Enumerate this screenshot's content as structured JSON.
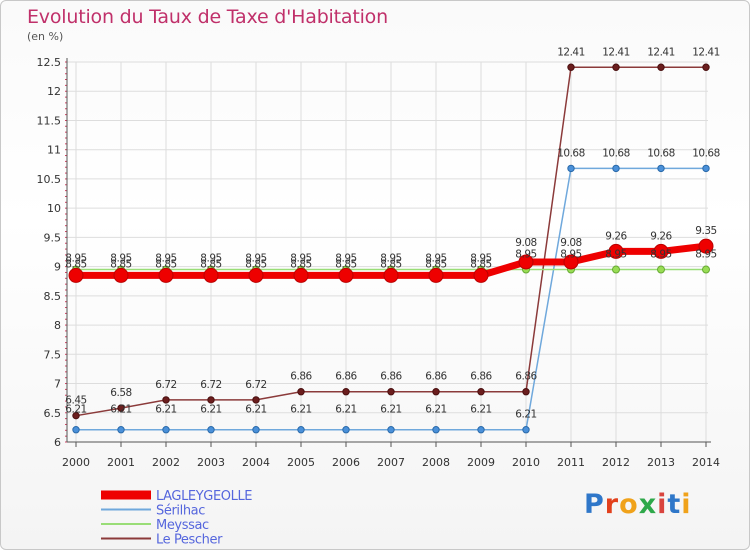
{
  "title": "Evolution du Taux de Taxe d'Habitation",
  "subtitle": "(en %)",
  "brand": "Proxiti",
  "brand_colors": [
    "#2f77c9",
    "#e2401c",
    "#f0a21a",
    "#2ea84a",
    "#d9443e",
    "#2f77c9",
    "#f0a21a"
  ],
  "chart_data": {
    "type": "line",
    "x": [
      "2000",
      "2001",
      "2002",
      "2003",
      "2004",
      "2005",
      "2006",
      "2007",
      "2008",
      "2009",
      "2010",
      "2011",
      "2012",
      "2013",
      "2014"
    ],
    "ylim": [
      6,
      12.5
    ],
    "yticks": [
      "6",
      "6.5",
      "7",
      "7.5",
      "8",
      "8.5",
      "9",
      "9.5",
      "10",
      "10.5",
      "11",
      "11.5",
      "12",
      "12.5"
    ],
    "grid": true,
    "legend_position": "bottom-left",
    "series": [
      {
        "name": "LAGLEYGEOLLE",
        "color": "#ee0000",
        "width": 7,
        "values": [
          8.85,
          8.85,
          8.85,
          8.85,
          8.85,
          8.85,
          8.85,
          8.85,
          8.85,
          8.85,
          9.08,
          9.08,
          9.26,
          9.26,
          9.35
        ],
        "labels": [
          "8.85",
          "8.85",
          "8.85",
          "8.85",
          "8.85",
          "8.85",
          "8.85",
          "8.85",
          "8.85",
          "8.85",
          "9.08",
          "9.08",
          "9.26",
          "9.26",
          "9.35"
        ]
      },
      {
        "name": "Sérilhac",
        "color": "#6fa8dc",
        "width": 1.5,
        "values": [
          6.21,
          6.21,
          6.21,
          6.21,
          6.21,
          6.21,
          6.21,
          6.21,
          6.21,
          6.21,
          6.21,
          10.68,
          10.68,
          10.68,
          10.68
        ],
        "labels": [
          "6.21",
          "6.21",
          "6.21",
          "6.21",
          "6.21",
          "6.21",
          "6.21",
          "6.21",
          "6.21",
          "6.21",
          "6.21",
          "10.68",
          "10.68",
          "10.68",
          "10.68"
        ]
      },
      {
        "name": "Meyssac",
        "color": "#99dd77",
        "width": 1.5,
        "values": [
          8.95,
          8.95,
          8.95,
          8.95,
          8.95,
          8.95,
          8.95,
          8.95,
          8.95,
          8.95,
          8.95,
          8.95,
          8.95,
          8.95,
          8.95
        ],
        "labels": [
          "8.95",
          "8.95",
          "8.95",
          "8.95",
          "8.95",
          "8.95",
          "8.95",
          "8.95",
          "8.95",
          "8.95",
          "8.95",
          "8.95",
          "8.95",
          "8.95",
          "8.95"
        ]
      },
      {
        "name": "Le Pescher",
        "color": "#8b3a3a",
        "width": 1.5,
        "values": [
          6.45,
          6.58,
          6.72,
          6.72,
          6.72,
          6.86,
          6.86,
          6.86,
          6.86,
          6.86,
          6.86,
          12.41,
          12.41,
          12.41,
          12.41
        ],
        "labels": [
          "6.45",
          "6.58",
          "6.72",
          "6.72",
          "6.72",
          "6.86",
          "6.86",
          "6.86",
          "6.86",
          "6.86",
          "6.86",
          "12.41",
          "12.41",
          "12.41",
          "12.41"
        ]
      }
    ]
  }
}
